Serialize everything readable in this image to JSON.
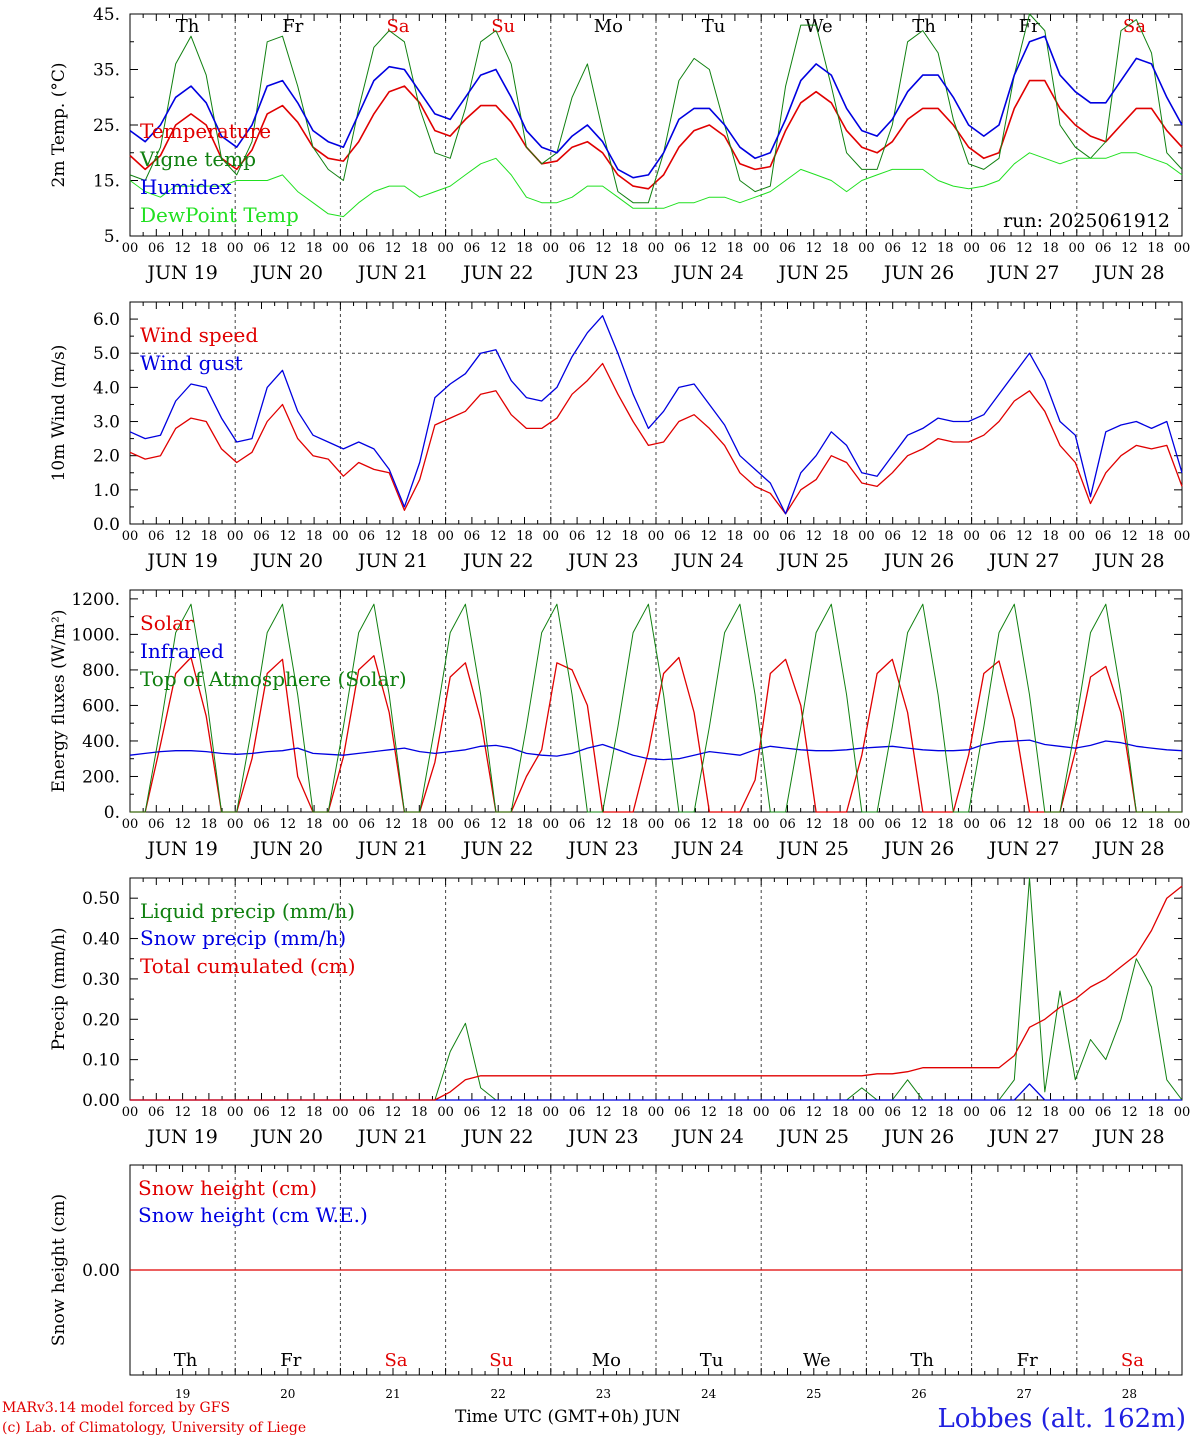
{
  "meta": {
    "run_label": "run: 2025061912",
    "credit_line1": "MARv3.14 model forced by GFS",
    "credit_line2": "(c) Lab. of Climatology, University of Liege",
    "time_axis_label": "Time UTC (GMT+0h) JUN",
    "location": "Lobbes (alt. 162m)"
  },
  "days": {
    "names": [
      "Th",
      "Fr",
      "Sa",
      "Su",
      "Mo",
      "Tu",
      "We",
      "Th",
      "Fr",
      "Sa"
    ],
    "weekend": [
      false,
      false,
      true,
      true,
      false,
      false,
      false,
      false,
      false,
      true
    ],
    "dates": [
      "JUN 19",
      "JUN 20",
      "JUN 21",
      "JUN 22",
      "JUN 23",
      "JUN 24",
      "JUN 25",
      "JUN 26",
      "JUN 27",
      "JUN 28"
    ],
    "numbers": [
      "19",
      "20",
      "21",
      "22",
      "23",
      "24",
      "25",
      "26",
      "27",
      "28"
    ],
    "hour_ticks": [
      "00",
      "06",
      "12",
      "18"
    ],
    "final_tick": "00"
  },
  "colors": {
    "red": "#e00000",
    "green": "#108010",
    "blue": "#0000e0",
    "lightgreen": "#20e020",
    "grid": "#444444"
  },
  "chart_data": [
    {
      "type": "line",
      "ylabel": "2m Temp. (°C)",
      "ylim": [
        5,
        45
      ],
      "yticks": [
        "5.",
        "15.",
        "25.",
        "35.",
        "45."
      ],
      "series": [
        {
          "name": "Temperature",
          "color": "red",
          "values": [
            19.5,
            17,
            19.5,
            25,
            27,
            25,
            19,
            17,
            20.5,
            27,
            28.5,
            25.5,
            21,
            19,
            18.5,
            22,
            27,
            31,
            32,
            29,
            24,
            23,
            26,
            28.5,
            28.5,
            25.5,
            21,
            18,
            18.5,
            21,
            22,
            20,
            16,
            14,
            13.5,
            16,
            21,
            24,
            25,
            23,
            18,
            17,
            17.5,
            24,
            29,
            31,
            29,
            24,
            21,
            20,
            22,
            26,
            28,
            28,
            25,
            21,
            19,
            20,
            28,
            33,
            33,
            28,
            25,
            23,
            22,
            25,
            28,
            28,
            24,
            21
          ]
        },
        {
          "name": "Vigne temp",
          "color": "green",
          "values": [
            16,
            15,
            21,
            36,
            41,
            34,
            19,
            16,
            22,
            40,
            41,
            32,
            21,
            17,
            15,
            28,
            39,
            42,
            40,
            28,
            20,
            19,
            28,
            40,
            42,
            36,
            21,
            18,
            20,
            30,
            36,
            24,
            13,
            11,
            11,
            20,
            33,
            37,
            35,
            25,
            15,
            13,
            14,
            32,
            43,
            43,
            32,
            20,
            17,
            17,
            25,
            40,
            42,
            38,
            26,
            18,
            17,
            19,
            34,
            45,
            42,
            25,
            21,
            19,
            22,
            42,
            44,
            38,
            20,
            17
          ]
        },
        {
          "name": "Humidex",
          "color": "blue",
          "values": [
            24,
            22,
            25,
            30,
            32,
            29,
            23,
            21,
            25,
            32,
            33,
            29,
            24,
            22,
            21,
            27,
            33,
            35.5,
            35,
            31,
            27,
            26,
            30,
            34,
            35,
            30,
            24,
            21,
            20,
            23,
            25,
            22,
            17,
            15.5,
            16,
            20,
            26,
            28,
            28,
            25,
            21,
            19,
            20,
            26,
            33,
            36,
            34,
            28,
            24,
            23,
            26,
            31,
            34,
            34,
            30,
            25,
            23,
            25,
            34,
            40,
            41,
            34,
            31,
            29,
            29,
            33,
            37,
            36,
            30,
            25
          ]
        },
        {
          "name": "DewPoint Temp",
          "color": "lightgreen",
          "values": [
            15,
            13,
            12,
            14,
            14,
            14,
            14,
            15,
            15,
            15,
            16,
            13,
            11,
            9,
            8.5,
            11,
            13,
            14,
            14,
            12,
            13,
            14,
            16,
            18,
            19,
            16,
            12,
            11,
            11,
            12,
            14,
            14,
            12,
            10,
            10,
            10,
            11,
            11,
            12,
            12,
            11,
            12,
            13,
            15,
            17,
            16,
            15,
            13,
            15,
            16,
            17,
            17,
            17,
            15,
            14,
            13.5,
            14,
            15,
            18,
            20,
            19,
            18,
            19,
            19,
            19,
            20,
            20,
            19,
            18,
            16
          ]
        }
      ]
    },
    {
      "type": "line",
      "ylabel": "10m Wind (m/s)",
      "ylim": [
        0,
        6.5
      ],
      "yticks": [
        "0.0",
        "1.0",
        "2.0",
        "3.0",
        "4.0",
        "5.0",
        "6.0"
      ],
      "ref_line": 5.0,
      "series": [
        {
          "name": "Wind speed",
          "color": "red",
          "values": [
            2.1,
            1.9,
            2.0,
            2.8,
            3.1,
            3.0,
            2.2,
            1.8,
            2.1,
            3.0,
            3.5,
            2.5,
            2.0,
            1.9,
            1.4,
            1.8,
            1.6,
            1.5,
            0.4,
            1.3,
            2.9,
            3.1,
            3.3,
            3.8,
            3.9,
            3.2,
            2.8,
            2.8,
            3.1,
            3.8,
            4.2,
            4.7,
            3.8,
            3.0,
            2.3,
            2.4,
            3.0,
            3.2,
            2.8,
            2.3,
            1.5,
            1.1,
            0.9,
            0.3,
            1.0,
            1.3,
            2.0,
            1.8,
            1.2,
            1.1,
            1.5,
            2.0,
            2.2,
            2.5,
            2.4,
            2.4,
            2.6,
            3.0,
            3.6,
            3.9,
            3.3,
            2.3,
            1.8,
            0.6,
            1.5,
            2.0,
            2.3,
            2.2,
            2.3,
            1.1
          ]
        },
        {
          "name": "Wind gust",
          "color": "blue",
          "values": [
            2.7,
            2.5,
            2.6,
            3.6,
            4.1,
            4.0,
            3.1,
            2.4,
            2.5,
            4.0,
            4.5,
            3.3,
            2.6,
            2.4,
            2.2,
            2.4,
            2.2,
            1.6,
            0.5,
            1.8,
            3.7,
            4.1,
            4.4,
            5.0,
            5.1,
            4.2,
            3.7,
            3.6,
            4.0,
            4.9,
            5.6,
            6.1,
            5.0,
            3.8,
            2.8,
            3.3,
            4.0,
            4.1,
            3.5,
            2.9,
            2.0,
            1.6,
            1.2,
            0.3,
            1.5,
            2.0,
            2.7,
            2.3,
            1.5,
            1.4,
            2.0,
            2.6,
            2.8,
            3.1,
            3.0,
            3.0,
            3.2,
            3.8,
            4.4,
            5.0,
            4.2,
            3.0,
            2.6,
            0.8,
            2.7,
            2.9,
            3.0,
            2.8,
            3.0,
            1.5
          ]
        }
      ]
    },
    {
      "type": "line",
      "ylabel": "Energy fluxes (W/m²)",
      "ylim": [
        0,
        1250
      ],
      "yticks": [
        "0.",
        "200.",
        "400.",
        "600.",
        "800.",
        "1000.",
        "1200."
      ],
      "series": [
        {
          "name": "Solar",
          "color": "red",
          "values": [
            0,
            0,
            380,
            780,
            870,
            540,
            0,
            0,
            300,
            780,
            860,
            200,
            0,
            0,
            310,
            800,
            880,
            560,
            0,
            0,
            280,
            760,
            840,
            520,
            0,
            0,
            200,
            350,
            840,
            800,
            600,
            0,
            0,
            0,
            340,
            780,
            870,
            560,
            0,
            0,
            0,
            180,
            780,
            860,
            600,
            0,
            0,
            0,
            320,
            780,
            860,
            560,
            0,
            0,
            0,
            320,
            780,
            850,
            520,
            0,
            0,
            0,
            340,
            760,
            820,
            560,
            0,
            0,
            0,
            0
          ]
        },
        {
          "name": "Infrared",
          "color": "blue",
          "values": [
            320,
            330,
            340,
            345,
            345,
            340,
            330,
            325,
            330,
            340,
            345,
            360,
            330,
            325,
            320,
            330,
            340,
            350,
            360,
            340,
            330,
            340,
            350,
            370,
            375,
            360,
            330,
            320,
            315,
            330,
            360,
            380,
            350,
            320,
            300,
            295,
            300,
            320,
            340,
            330,
            320,
            350,
            370,
            360,
            350,
            345,
            345,
            350,
            360,
            365,
            370,
            360,
            350,
            345,
            345,
            350,
            380,
            395,
            400,
            405,
            380,
            370,
            360,
            375,
            400,
            390,
            370,
            360,
            350,
            345
          ]
        },
        {
          "name": "Top of Atmosphere (Solar)",
          "color": "green",
          "values": [
            0,
            0,
            480,
            1010,
            1170,
            660,
            0,
            0,
            480,
            1010,
            1170,
            660,
            0,
            0,
            480,
            1010,
            1170,
            660,
            0,
            0,
            480,
            1010,
            1170,
            660,
            0,
            0,
            480,
            1010,
            1170,
            660,
            0,
            0,
            480,
            1010,
            1170,
            660,
            0,
            0,
            480,
            1010,
            1170,
            660,
            0,
            0,
            480,
            1010,
            1170,
            660,
            0,
            0,
            480,
            1010,
            1170,
            660,
            0,
            0,
            480,
            1010,
            1170,
            660,
            0,
            0,
            480,
            1010,
            1170,
            660,
            0,
            0,
            0,
            0
          ]
        }
      ]
    },
    {
      "type": "line",
      "ylabel": "Precip (mm/h)",
      "ylim": [
        0,
        0.55
      ],
      "yticks": [
        "0.00",
        "0.10",
        "0.20",
        "0.30",
        "0.40",
        "0.50"
      ],
      "series": [
        {
          "name": "Liquid precip (mm/h)",
          "color": "green",
          "values": [
            0,
            0,
            0,
            0,
            0,
            0,
            0,
            0,
            0,
            0,
            0,
            0,
            0,
            0,
            0,
            0,
            0,
            0,
            0,
            0,
            0,
            0.12,
            0.19,
            0.03,
            0,
            0,
            0,
            0,
            0,
            0,
            0,
            0,
            0,
            0,
            0,
            0,
            0,
            0,
            0,
            0,
            0,
            0,
            0,
            0,
            0,
            0,
            0,
            0,
            0.03,
            0,
            0,
            0.05,
            0,
            0,
            0,
            0,
            0,
            0,
            0.05,
            0.55,
            0.02,
            0.27,
            0.05,
            0.15,
            0.1,
            0.2,
            0.35,
            0.28,
            0.05,
            0
          ]
        },
        {
          "name": "Snow precip (mm/h)",
          "color": "blue",
          "values": [
            0,
            0,
            0,
            0,
            0,
            0,
            0,
            0,
            0,
            0,
            0,
            0,
            0,
            0,
            0,
            0,
            0,
            0,
            0,
            0,
            0,
            0,
            0,
            0,
            0,
            0,
            0,
            0,
            0,
            0,
            0,
            0,
            0,
            0,
            0,
            0,
            0,
            0,
            0,
            0,
            0,
            0,
            0,
            0,
            0,
            0,
            0,
            0,
            0,
            0,
            0,
            0,
            0,
            0,
            0,
            0,
            0,
            0,
            0,
            0.04,
            0,
            0,
            0,
            0,
            0,
            0,
            0,
            0,
            0,
            0
          ]
        },
        {
          "name": "Total cumulated (cm)",
          "color": "red",
          "values": [
            0,
            0,
            0,
            0,
            0,
            0,
            0,
            0,
            0,
            0,
            0,
            0,
            0,
            0,
            0,
            0,
            0,
            0,
            0,
            0,
            0,
            0.02,
            0.05,
            0.06,
            0.06,
            0.06,
            0.06,
            0.06,
            0.06,
            0.06,
            0.06,
            0.06,
            0.06,
            0.06,
            0.06,
            0.06,
            0.06,
            0.06,
            0.06,
            0.06,
            0.06,
            0.06,
            0.06,
            0.06,
            0.06,
            0.06,
            0.06,
            0.06,
            0.06,
            0.065,
            0.065,
            0.07,
            0.08,
            0.08,
            0.08,
            0.08,
            0.08,
            0.08,
            0.11,
            0.18,
            0.2,
            0.23,
            0.25,
            0.28,
            0.3,
            0.33,
            0.36,
            0.42,
            0.5,
            0.53
          ]
        }
      ]
    },
    {
      "type": "line",
      "ylabel": "Snow height (cm)",
      "ylim": [
        -1,
        1
      ],
      "yticks": [
        "0.00"
      ],
      "series": [
        {
          "name": "Snow height (cm)",
          "color": "red",
          "values": [
            0,
            0
          ]
        },
        {
          "name": "Snow height (cm W.E.)",
          "color": "blue",
          "values": []
        }
      ]
    }
  ]
}
